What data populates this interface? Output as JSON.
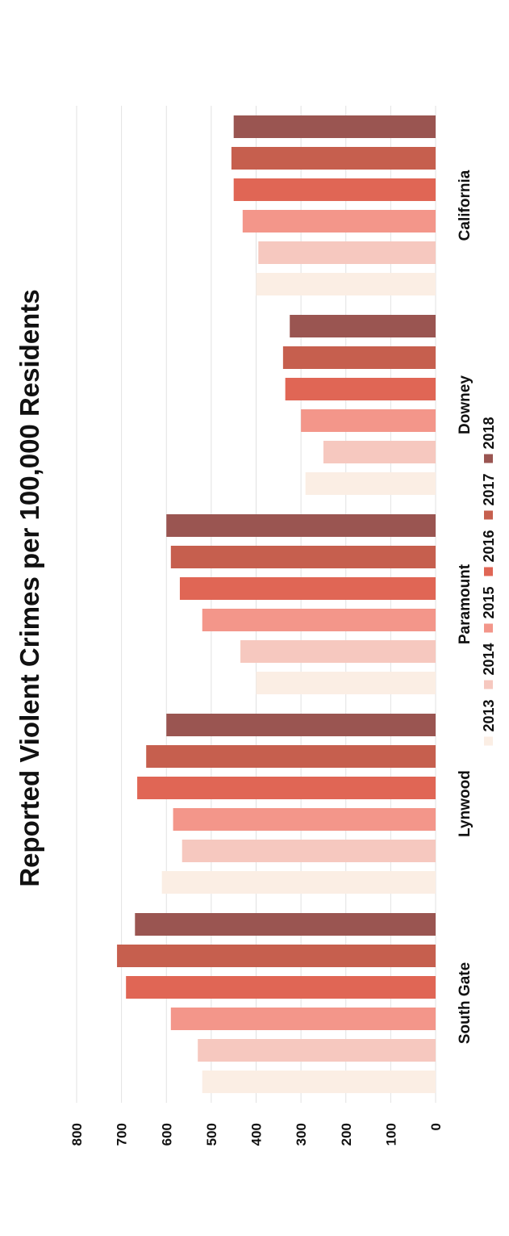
{
  "chart_data": {
    "type": "bar",
    "title": "Reported Violent Crimes per 100,000 Residents",
    "categories": [
      "South Gate",
      "Lynwood",
      "Paramount",
      "Downey",
      "California"
    ],
    "series": [
      {
        "name": "2013",
        "color": "#fbeee4",
        "values": [
          520,
          610,
          400,
          290,
          400
        ]
      },
      {
        "name": "2014",
        "color": "#f6c8bf",
        "values": [
          530,
          565,
          435,
          250,
          395
        ]
      },
      {
        "name": "2015",
        "color": "#f3968a",
        "values": [
          590,
          585,
          520,
          300,
          430
        ]
      },
      {
        "name": "2016",
        "color": "#e06655",
        "values": [
          690,
          665,
          570,
          335,
          450
        ]
      },
      {
        "name": "2017",
        "color": "#c65f4e",
        "values": [
          710,
          645,
          590,
          340,
          455
        ]
      },
      {
        "name": "2018",
        "color": "#9a5551",
        "values": [
          670,
          600,
          600,
          325,
          450
        ]
      }
    ],
    "ylim": [
      0,
      800
    ],
    "yticks": [
      "0",
      "100",
      "200",
      "300",
      "400",
      "500",
      "600",
      "700",
      "800"
    ],
    "xlabel": "",
    "ylabel": "",
    "legend_position": "bottom",
    "grid": true,
    "orientation": "rotated 90° counter-clockwise"
  }
}
